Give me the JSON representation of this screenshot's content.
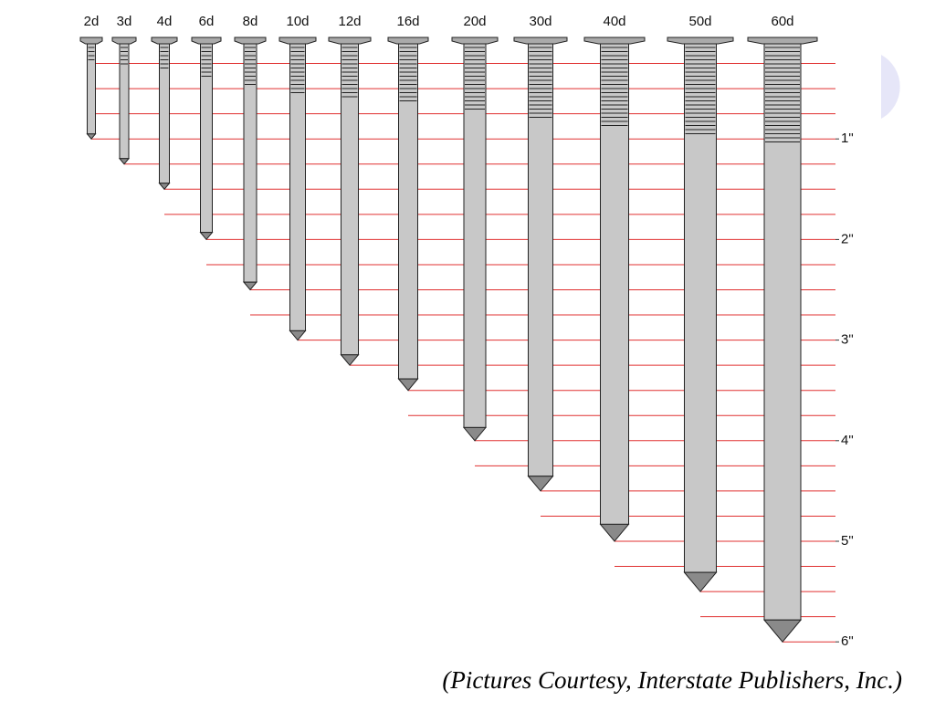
{
  "nails": [
    {
      "label": "2d",
      "length": 1
    },
    {
      "label": "3d",
      "length": 1.25
    },
    {
      "label": "4d",
      "length": 1.5
    },
    {
      "label": "6d",
      "length": 2
    },
    {
      "label": "8d",
      "length": 2.5
    },
    {
      "label": "10d",
      "length": 3
    },
    {
      "label": "12d",
      "length": 3.25
    },
    {
      "label": "16d",
      "length": 3.5
    },
    {
      "label": "20d",
      "length": 4
    },
    {
      "label": "30d",
      "length": 4.5
    },
    {
      "label": "40d",
      "length": 5
    },
    {
      "label": "50d",
      "length": 5.5
    },
    {
      "label": "60d",
      "length": 6
    }
  ],
  "ruler": {
    "ticks": [
      {
        "value": 1,
        "label": "1\""
      },
      {
        "value": 2,
        "label": "2\""
      },
      {
        "value": 3,
        "label": "3\""
      },
      {
        "value": 4,
        "label": "4\""
      },
      {
        "value": 5,
        "label": "5\""
      },
      {
        "value": 6,
        "label": "6\""
      }
    ],
    "lines": [
      0.25,
      0.5,
      0.75,
      1,
      1.25,
      1.5,
      1.75,
      2,
      2.25,
      2.5,
      2.75,
      3,
      3.25,
      3.5,
      3.75,
      4,
      4.25,
      4.5,
      4.75,
      5,
      5.25,
      5.5,
      5.75,
      6
    ]
  },
  "caption": "(Pictures Courtesy, Interstate Publishers, Inc.)"
}
